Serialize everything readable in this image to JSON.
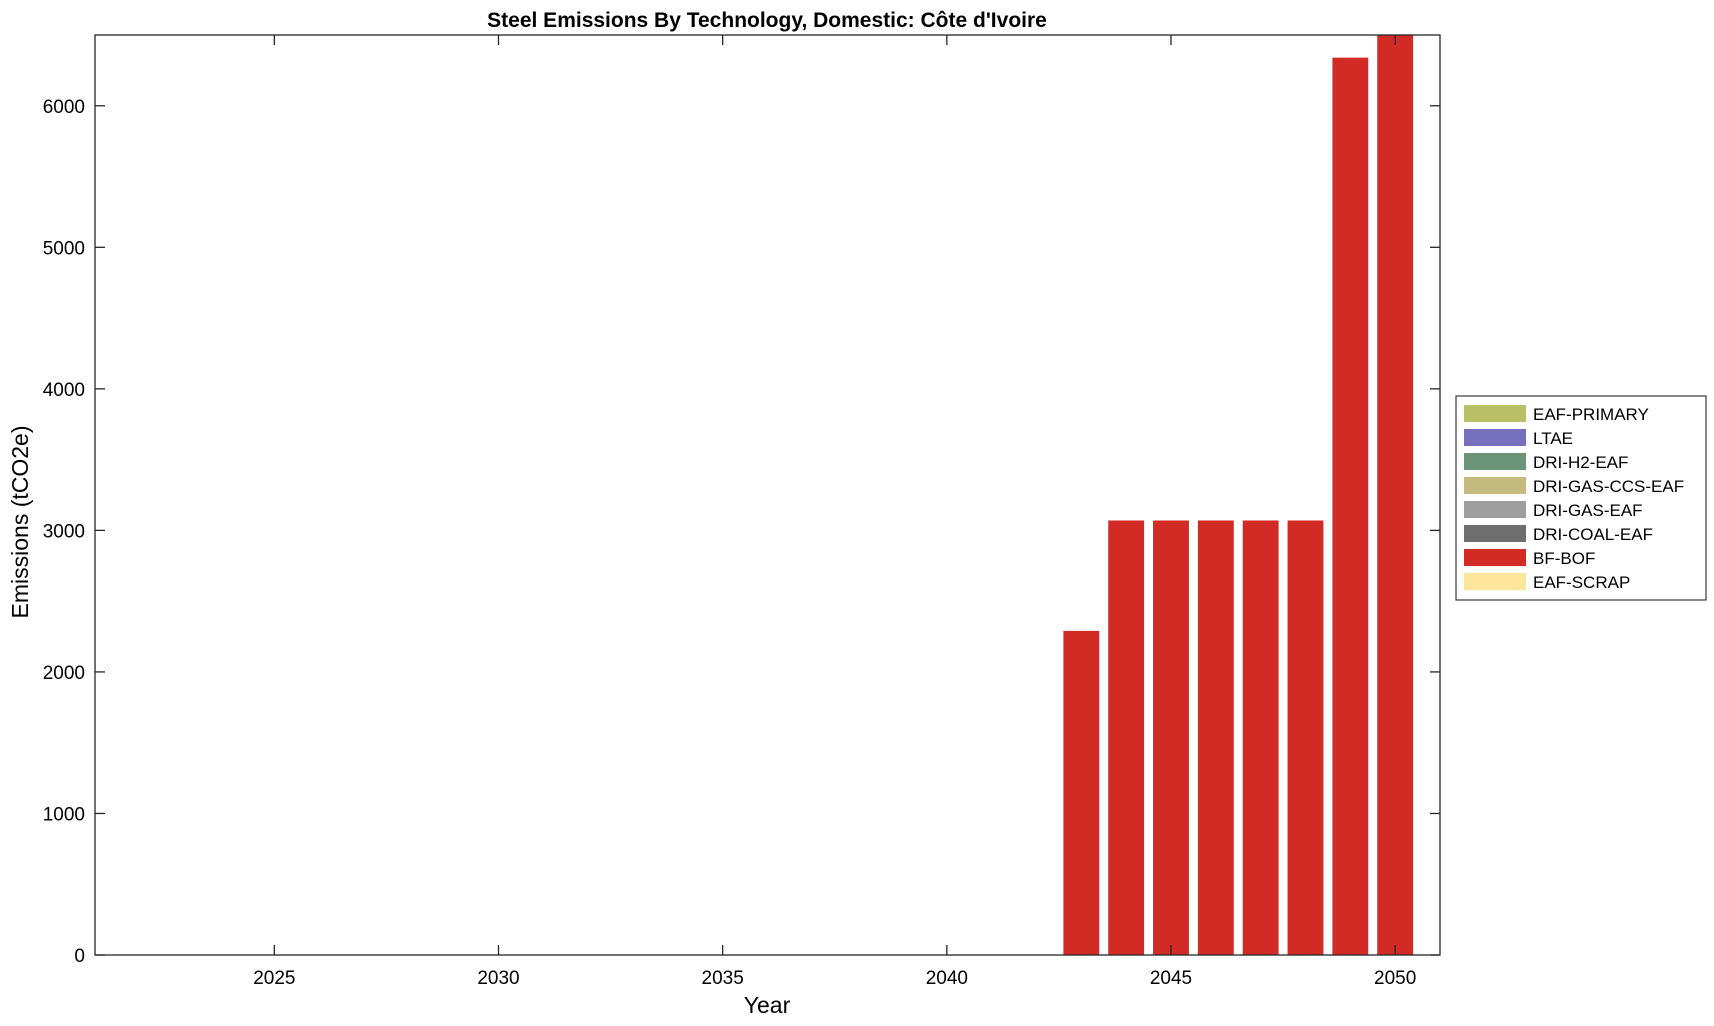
{
  "chart_data": {
    "type": "bar",
    "stacked": true,
    "title": "Steel Emissions By Technology, Domestic: Côte d'Ivoire",
    "xlabel": "Year",
    "ylabel": "Emissions (tCO2e)",
    "x": [
      2023,
      2024,
      2025,
      2026,
      2027,
      2028,
      2029,
      2030,
      2031,
      2032,
      2033,
      2034,
      2035,
      2036,
      2037,
      2038,
      2039,
      2040,
      2041,
      2042,
      2043,
      2044,
      2045,
      2046,
      2047,
      2048,
      2049,
      2050
    ],
    "xlim": [
      2021,
      2051
    ],
    "ylim": [
      0,
      6500
    ],
    "xticks": [
      2025,
      2030,
      2035,
      2040,
      2045,
      2050
    ],
    "yticks": [
      0,
      1000,
      2000,
      3000,
      4000,
      5000,
      6000
    ],
    "grid": false,
    "legend_position": "outside-right",
    "series": [
      {
        "name": "EAF-PRIMARY",
        "color": "#b8c065",
        "values": [
          0,
          0,
          0,
          0,
          0,
          0,
          0,
          0,
          0,
          0,
          0,
          0,
          0,
          0,
          0,
          0,
          0,
          0,
          0,
          0,
          0,
          0,
          0,
          0,
          0,
          0,
          0,
          0
        ]
      },
      {
        "name": "LTAE",
        "color": "#7670bc",
        "values": [
          0,
          0,
          0,
          0,
          0,
          0,
          0,
          0,
          0,
          0,
          0,
          0,
          0,
          0,
          0,
          0,
          0,
          0,
          0,
          0,
          0,
          0,
          0,
          0,
          0,
          0,
          0,
          0
        ]
      },
      {
        "name": "DRI-H2-EAF",
        "color": "#6b9478",
        "values": [
          0,
          0,
          0,
          0,
          0,
          0,
          0,
          0,
          0,
          0,
          0,
          0,
          0,
          0,
          0,
          0,
          0,
          0,
          0,
          0,
          0,
          0,
          0,
          0,
          0,
          0,
          0,
          0
        ]
      },
      {
        "name": "DRI-GAS-CCS-EAF",
        "color": "#c6bb7e",
        "values": [
          0,
          0,
          0,
          0,
          0,
          0,
          0,
          0,
          0,
          0,
          0,
          0,
          0,
          0,
          0,
          0,
          0,
          0,
          0,
          0,
          0,
          0,
          0,
          0,
          0,
          0,
          0,
          0
        ]
      },
      {
        "name": "DRI-GAS-EAF",
        "color": "#9e9e9e",
        "values": [
          0,
          0,
          0,
          0,
          0,
          0,
          0,
          0,
          0,
          0,
          0,
          0,
          0,
          0,
          0,
          0,
          0,
          0,
          0,
          0,
          0,
          0,
          0,
          0,
          0,
          0,
          0,
          0
        ]
      },
      {
        "name": "DRI-COAL-EAF",
        "color": "#6e6e6e",
        "values": [
          0,
          0,
          0,
          0,
          0,
          0,
          0,
          0,
          0,
          0,
          0,
          0,
          0,
          0,
          0,
          0,
          0,
          0,
          0,
          0,
          0,
          0,
          0,
          0,
          0,
          0,
          0,
          0
        ]
      },
      {
        "name": "BF-BOF",
        "color": "#d22a25",
        "values": [
          0,
          0,
          0,
          0,
          0,
          0,
          0,
          0,
          0,
          0,
          0,
          0,
          0,
          0,
          0,
          0,
          0,
          0,
          0,
          0,
          2290,
          3070,
          3070,
          3070,
          3070,
          3070,
          6340,
          6500
        ]
      },
      {
        "name": "EAF-SCRAP",
        "color": "#fde599",
        "values": [
          0,
          0,
          0,
          0,
          0,
          0,
          0,
          0,
          0,
          0,
          0,
          0,
          0,
          0,
          0,
          0,
          0,
          0,
          0,
          0,
          0,
          0,
          0,
          0,
          0,
          0,
          0,
          0
        ]
      }
    ]
  }
}
